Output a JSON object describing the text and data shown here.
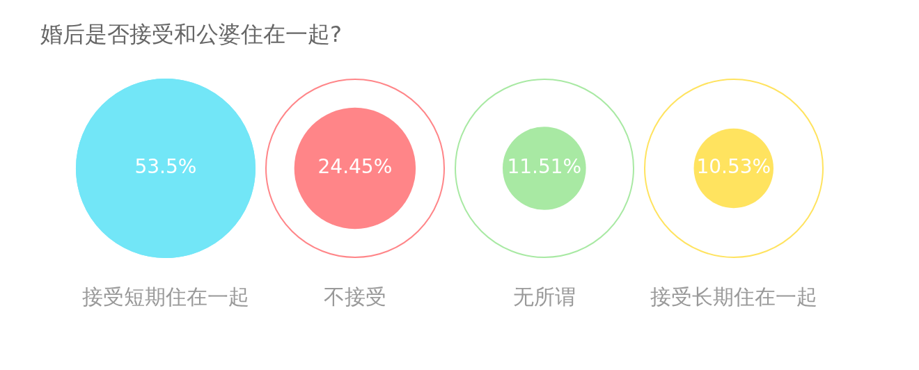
{
  "chart_data": {
    "type": "other",
    "title": "婚后是否接受和公婆住在一起?",
    "categories": [
      "接受短期住在一起",
      "不接受",
      "无所谓",
      "接受长期住在一起"
    ],
    "values": [
      53.5,
      24.45,
      11.51,
      10.53
    ],
    "colors": [
      "#72e6f7",
      "#ff8588",
      "#a8e9a3",
      "#ffe35f"
    ],
    "value_labels": [
      "53.5%",
      "24.45%",
      "11.51%",
      "10.53%"
    ]
  }
}
